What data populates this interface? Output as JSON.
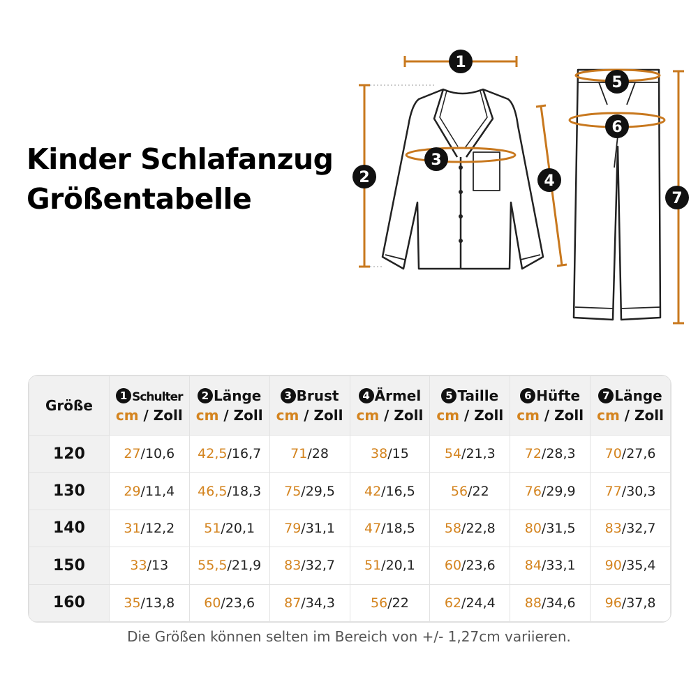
{
  "title": [
    "Kinder Schlafanzug",
    "Größentabelle"
  ],
  "diagram": {
    "markers": [
      "1",
      "2",
      "3",
      "4",
      "5",
      "6",
      "7"
    ]
  },
  "table": {
    "size_header": "Größe",
    "units": "cm / Zoll",
    "columns": [
      {
        "num": "1",
        "label": "Schulter"
      },
      {
        "num": "2",
        "label": "Länge"
      },
      {
        "num": "3",
        "label": "Brust"
      },
      {
        "num": "4",
        "label": "Ärmel"
      },
      {
        "num": "5",
        "label": "Taille"
      },
      {
        "num": "6",
        "label": "Hüfte"
      },
      {
        "num": "7",
        "label": "Länge"
      }
    ],
    "rows": [
      {
        "size": "120",
        "cells": [
          "27/10,6",
          "42,5/16,7",
          "71/28",
          "38/15",
          "54/21,3",
          "72/28,3",
          "70/27,6"
        ]
      },
      {
        "size": "130",
        "cells": [
          "29/11,4",
          "46,5/18,3",
          "75/29,5",
          "42/16,5",
          "56/22",
          "76/29,9",
          "77/30,3"
        ]
      },
      {
        "size": "140",
        "cells": [
          "31/12,2",
          "51/20,1",
          "79/31,1",
          "47/18,5",
          "58/22,8",
          "80/31,5",
          "83/32,7"
        ]
      },
      {
        "size": "150",
        "cells": [
          "33/13",
          "55,5/21,9",
          "83/32,7",
          "51/20,1",
          "60/23,6",
          "84/33,1",
          "90/35,4"
        ]
      },
      {
        "size": "160",
        "cells": [
          "35/13,8",
          "60/23,6",
          "87/34,3",
          "56/22",
          "62/24,4",
          "88/34,6",
          "96/37,8"
        ]
      }
    ]
  },
  "note": "Die Größen können selten im Bereich von +/- 1,27cm variieren."
}
